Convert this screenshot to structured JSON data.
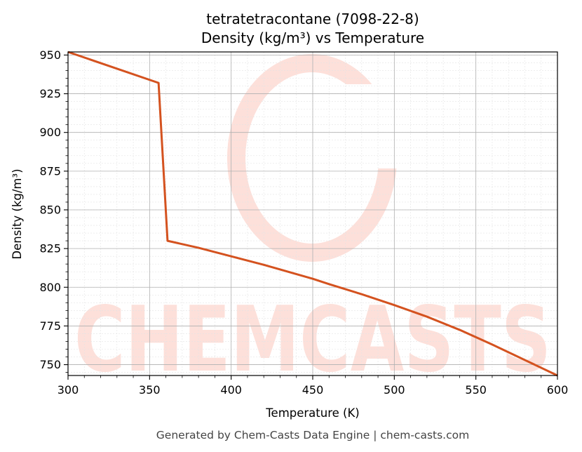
{
  "chart_data": {
    "type": "line",
    "title_line1": "tetratetracontane (7098-22-8)",
    "title_line2": "Density (kg/m³) vs Temperature",
    "xlabel": "Temperature (K)",
    "ylabel": "Density (kg/m³)",
    "xlim": [
      300,
      600
    ],
    "ylim": [
      743,
      952
    ],
    "xticks": [
      300,
      350,
      400,
      450,
      500,
      550,
      600
    ],
    "yticks": [
      750,
      775,
      800,
      825,
      850,
      875,
      900,
      925,
      950
    ],
    "grid": true,
    "series": [
      {
        "color": "#d4521f",
        "points": [
          [
            300,
            952
          ],
          [
            355.5,
            932
          ],
          [
            361,
            830
          ],
          [
            380,
            825.5
          ],
          [
            400,
            820
          ],
          [
            420,
            814.5
          ],
          [
            440,
            808.5
          ],
          [
            450,
            805.5
          ],
          [
            460,
            802
          ],
          [
            480,
            795.5
          ],
          [
            500,
            788.5
          ],
          [
            520,
            781
          ],
          [
            540,
            772.5
          ],
          [
            560,
            763
          ],
          [
            580,
            753
          ],
          [
            600,
            743
          ]
        ]
      }
    ]
  },
  "watermark": {
    "text": "CHEMCASTS",
    "color": "#fde0da"
  },
  "footer": "Generated by Chem-Casts Data Engine | chem-casts.com"
}
